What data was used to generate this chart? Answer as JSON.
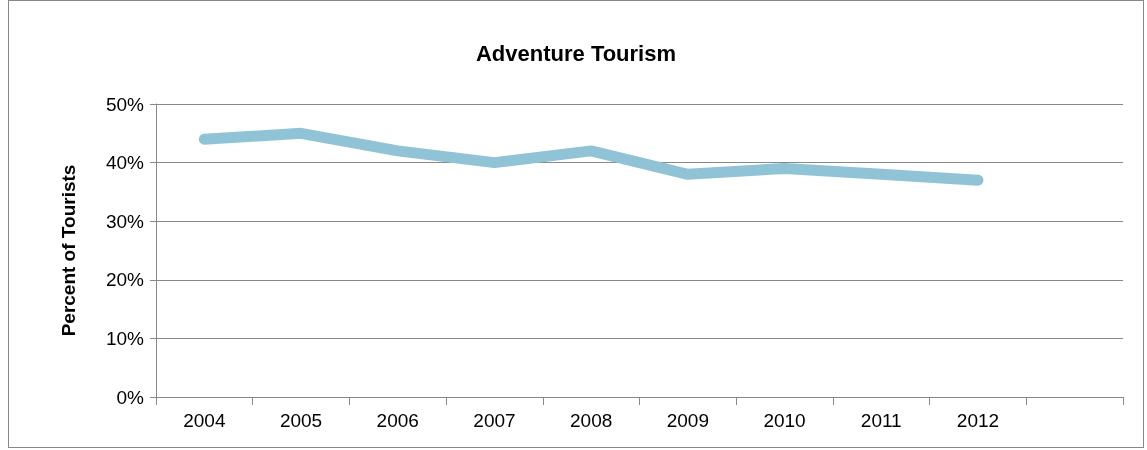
{
  "chart_data": {
    "type": "line",
    "title": "Adventure Tourism",
    "ylabel": "Percent of Tourists",
    "categories": [
      "2004",
      "2005",
      "2006",
      "2007",
      "2008",
      "2009",
      "2010",
      "2011",
      "2012",
      null
    ],
    "series": [
      {
        "color": "#8fc3d5",
        "values": [
          44,
          45,
          42,
          40,
          42,
          38,
          39,
          38,
          37,
          null
        ]
      }
    ],
    "ylim": [
      0,
      50
    ],
    "yticks": [
      {
        "value": 0,
        "label": "0%"
      },
      {
        "value": 10,
        "label": "10%"
      },
      {
        "value": 20,
        "label": "20%"
      },
      {
        "value": 30,
        "label": "30%"
      },
      {
        "value": 40,
        "label": "40%"
      },
      {
        "value": 50,
        "label": "50%"
      }
    ],
    "grid": "y",
    "line_style": "solid"
  }
}
